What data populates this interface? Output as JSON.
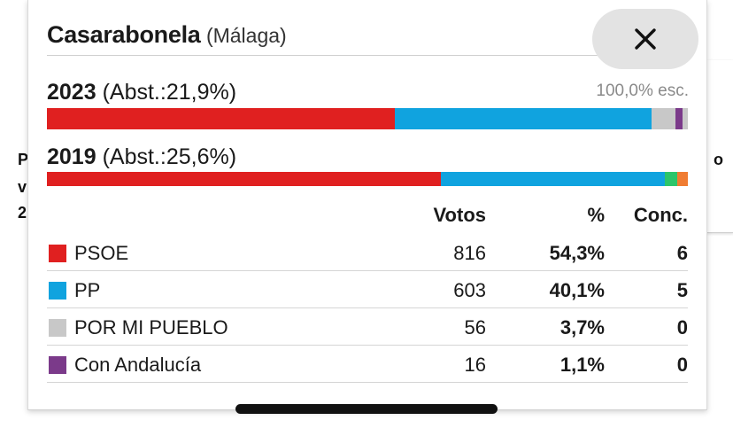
{
  "background": {
    "left_chars": [
      "P",
      "v",
      "2"
    ],
    "right_char": "o"
  },
  "popup": {
    "title": "Casarabonela",
    "subtitle": "(Málaga)",
    "close_icon": "close-icon"
  },
  "elections": [
    {
      "year": "2023",
      "abst": "(Abst.:21,9%)",
      "escrutinio": "100,0% esc.",
      "bar": [
        {
          "name": "PSOE",
          "pct": 54.3,
          "color": "#e02020"
        },
        {
          "name": "PP",
          "pct": 40.1,
          "color": "#10a3df"
        },
        {
          "name": "POR MI PUEBLO",
          "pct": 3.7,
          "color": "#c8c8c8"
        },
        {
          "name": "Con Andalucía",
          "pct": 1.1,
          "color": "#7b3a8a"
        },
        {
          "name": "other",
          "pct": 0.8,
          "color": "#c8c8c8"
        }
      ]
    },
    {
      "year": "2019",
      "abst": "(Abst.:25,6%)",
      "bar": [
        {
          "name": "PSOE",
          "pct": 61.5,
          "color": "#e02020"
        },
        {
          "name": "PP",
          "pct": 34.9,
          "color": "#10a3df"
        },
        {
          "name": "green",
          "pct": 1.9,
          "color": "#2cc56a"
        },
        {
          "name": "orange",
          "pct": 1.7,
          "color": "#f07c32"
        }
      ]
    }
  ],
  "table": {
    "headers": {
      "votos": "Votos",
      "pct": "%",
      "conc": "Conc."
    },
    "rows": [
      {
        "party": "PSOE",
        "color": "#e02020",
        "votos": "816",
        "pct": "54,3%",
        "conc": "6"
      },
      {
        "party": "PP",
        "color": "#10a3df",
        "votos": "603",
        "pct": "40,1%",
        "conc": "5"
      },
      {
        "party": "POR MI PUEBLO",
        "color": "#c8c8c8",
        "votos": "56",
        "pct": "3,7%",
        "conc": "0"
      },
      {
        "party": "Con Andalucía",
        "color": "#7b3a8a",
        "votos": "16",
        "pct": "1,1%",
        "conc": "0"
      }
    ]
  }
}
